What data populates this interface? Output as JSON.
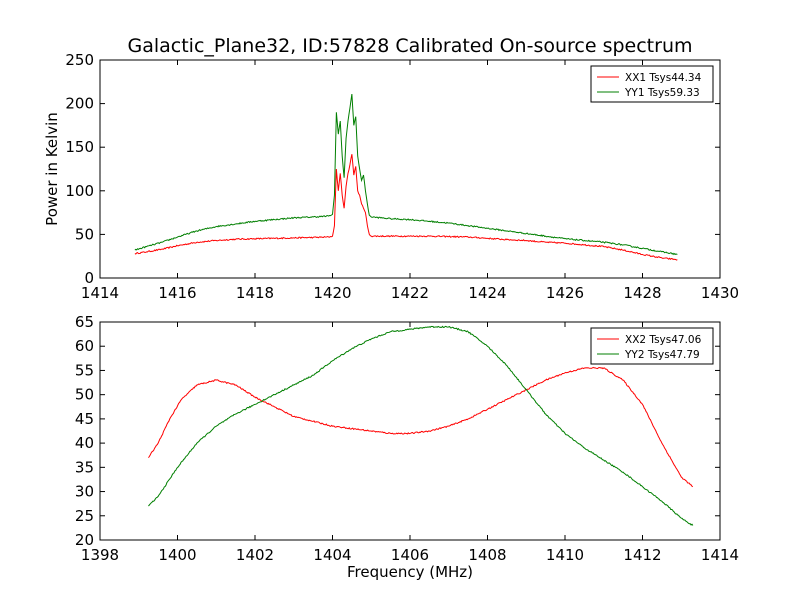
{
  "figure": {
    "title": "Galactic_Plane32, ID:57828 Calibrated On-source spectrum"
  },
  "chart_data": [
    {
      "type": "line",
      "ylabel": "Power in Kelvin",
      "xlabel": "",
      "xlim": [
        1414,
        1430
      ],
      "ylim": [
        0,
        250
      ],
      "xticks": [
        1414,
        1416,
        1418,
        1420,
        1422,
        1424,
        1426,
        1428,
        1430
      ],
      "yticks": [
        0,
        50,
        100,
        150,
        200,
        250
      ],
      "grid": false,
      "legend_position": "top-right",
      "series": [
        {
          "name": "XX1 Tsys44.34",
          "color": "#ff0000",
          "points": [
            [
              1414.9,
              28
            ],
            [
              1415.2,
              30
            ],
            [
              1415.6,
              33
            ],
            [
              1416.0,
              37
            ],
            [
              1416.5,
              41
            ],
            [
              1417.0,
              43
            ],
            [
              1417.5,
              44.5
            ],
            [
              1418.0,
              45
            ],
            [
              1418.5,
              45.5
            ],
            [
              1419.0,
              46
            ],
            [
              1419.5,
              46.5
            ],
            [
              1419.9,
              47
            ],
            [
              1420.0,
              48
            ],
            [
              1420.05,
              60
            ],
            [
              1420.1,
              125
            ],
            [
              1420.15,
              100
            ],
            [
              1420.2,
              120
            ],
            [
              1420.25,
              95
            ],
            [
              1420.3,
              80
            ],
            [
              1420.35,
              105
            ],
            [
              1420.4,
              120
            ],
            [
              1420.45,
              130
            ],
            [
              1420.5,
              142
            ],
            [
              1420.55,
              118
            ],
            [
              1420.6,
              128
            ],
            [
              1420.65,
              100
            ],
            [
              1420.7,
              95
            ],
            [
              1420.75,
              85
            ],
            [
              1420.8,
              80
            ],
            [
              1420.85,
              75
            ],
            [
              1420.9,
              60
            ],
            [
              1420.95,
              50
            ],
            [
              1421.0,
              48
            ],
            [
              1421.5,
              48
            ],
            [
              1422.0,
              48
            ],
            [
              1422.5,
              48
            ],
            [
              1423.0,
              47.5
            ],
            [
              1423.5,
              47
            ],
            [
              1424.0,
              45.5
            ],
            [
              1424.5,
              44
            ],
            [
              1425.0,
              43
            ],
            [
              1425.5,
              41
            ],
            [
              1426.0,
              40
            ],
            [
              1426.5,
              38
            ],
            [
              1427.0,
              36
            ],
            [
              1427.5,
              32
            ],
            [
              1428.0,
              27
            ],
            [
              1428.5,
              23
            ],
            [
              1428.9,
              21
            ]
          ]
        },
        {
          "name": "YY1 Tsys59.33",
          "color": "#007f00",
          "points": [
            [
              1414.9,
              32
            ],
            [
              1415.2,
              36
            ],
            [
              1415.6,
              41
            ],
            [
              1416.0,
              47
            ],
            [
              1416.5,
              54
            ],
            [
              1417.0,
              59
            ],
            [
              1417.5,
              62
            ],
            [
              1418.0,
              65
            ],
            [
              1418.5,
              67
            ],
            [
              1419.0,
              69
            ],
            [
              1419.5,
              70
            ],
            [
              1419.9,
              71
            ],
            [
              1420.0,
              73
            ],
            [
              1420.05,
              95
            ],
            [
              1420.1,
              190
            ],
            [
              1420.15,
              165
            ],
            [
              1420.2,
              180
            ],
            [
              1420.25,
              140
            ],
            [
              1420.3,
              115
            ],
            [
              1420.35,
              160
            ],
            [
              1420.4,
              180
            ],
            [
              1420.45,
              195
            ],
            [
              1420.5,
              211
            ],
            [
              1420.55,
              175
            ],
            [
              1420.6,
              185
            ],
            [
              1420.65,
              140
            ],
            [
              1420.7,
              125
            ],
            [
              1420.75,
              112
            ],
            [
              1420.8,
              118
            ],
            [
              1420.85,
              100
            ],
            [
              1420.9,
              85
            ],
            [
              1420.95,
              72
            ],
            [
              1421.0,
              70
            ],
            [
              1421.5,
              68
            ],
            [
              1422.0,
              67
            ],
            [
              1422.5,
              65
            ],
            [
              1423.0,
              63
            ],
            [
              1423.5,
              60
            ],
            [
              1424.0,
              57
            ],
            [
              1424.5,
              54
            ],
            [
              1425.0,
              51
            ],
            [
              1425.5,
              48
            ],
            [
              1426.0,
              45
            ],
            [
              1426.5,
              43
            ],
            [
              1427.0,
              41
            ],
            [
              1427.5,
              38
            ],
            [
              1428.0,
              34
            ],
            [
              1428.5,
              30
            ],
            [
              1428.9,
              27
            ]
          ]
        }
      ]
    },
    {
      "type": "line",
      "ylabel": "",
      "xlabel": "Frequency (MHz)",
      "xlim": [
        1398,
        1414
      ],
      "ylim": [
        20,
        65
      ],
      "xticks": [
        1398,
        1400,
        1402,
        1404,
        1406,
        1408,
        1410,
        1412,
        1414
      ],
      "yticks": [
        20,
        25,
        30,
        35,
        40,
        45,
        50,
        55,
        60,
        65
      ],
      "grid": false,
      "legend_position": "top-right",
      "series": [
        {
          "name": "XX2 Tsys47.06",
          "color": "#ff0000",
          "points": [
            [
              1399.25,
              37
            ],
            [
              1399.5,
              40
            ],
            [
              1399.8,
              45
            ],
            [
              1400.1,
              49
            ],
            [
              1400.5,
              52
            ],
            [
              1401.0,
              53
            ],
            [
              1401.5,
              52
            ],
            [
              1402.0,
              49.5
            ],
            [
              1402.5,
              47.5
            ],
            [
              1403.0,
              45.5
            ],
            [
              1403.5,
              44.5
            ],
            [
              1404.0,
              43.5
            ],
            [
              1404.5,
              43
            ],
            [
              1405.0,
              42.5
            ],
            [
              1405.5,
              42
            ],
            [
              1406.0,
              42
            ],
            [
              1406.5,
              42.5
            ],
            [
              1407.0,
              43.5
            ],
            [
              1407.5,
              45
            ],
            [
              1408.0,
              47
            ],
            [
              1408.5,
              49
            ],
            [
              1409.0,
              51
            ],
            [
              1409.5,
              53
            ],
            [
              1410.0,
              54.5
            ],
            [
              1410.5,
              55.5
            ],
            [
              1411.0,
              55.5
            ],
            [
              1411.5,
              53
            ],
            [
              1412.0,
              48
            ],
            [
              1412.5,
              40
            ],
            [
              1413.0,
              33
            ],
            [
              1413.3,
              31
            ]
          ]
        },
        {
          "name": "YY2 Tsys47.79",
          "color": "#007f00",
          "points": [
            [
              1399.25,
              27
            ],
            [
              1399.5,
              29
            ],
            [
              1400.0,
              35
            ],
            [
              1400.5,
              40
            ],
            [
              1401.0,
              43.5
            ],
            [
              1401.5,
              46
            ],
            [
              1402.0,
              48
            ],
            [
              1402.5,
              50
            ],
            [
              1403.0,
              52
            ],
            [
              1403.5,
              54
            ],
            [
              1404.0,
              57
            ],
            [
              1404.5,
              59.5
            ],
            [
              1405.0,
              61.5
            ],
            [
              1405.5,
              63
            ],
            [
              1406.0,
              63.5
            ],
            [
              1406.5,
              64
            ],
            [
              1407.0,
              64
            ],
            [
              1407.5,
              63
            ],
            [
              1408.0,
              60
            ],
            [
              1408.5,
              56
            ],
            [
              1409.0,
              51
            ],
            [
              1409.5,
              46
            ],
            [
              1410.0,
              42
            ],
            [
              1410.5,
              39
            ],
            [
              1411.0,
              36.5
            ],
            [
              1411.5,
              34
            ],
            [
              1412.0,
              31
            ],
            [
              1412.5,
              28
            ],
            [
              1413.0,
              24.5
            ],
            [
              1413.3,
              23
            ]
          ]
        }
      ]
    }
  ]
}
